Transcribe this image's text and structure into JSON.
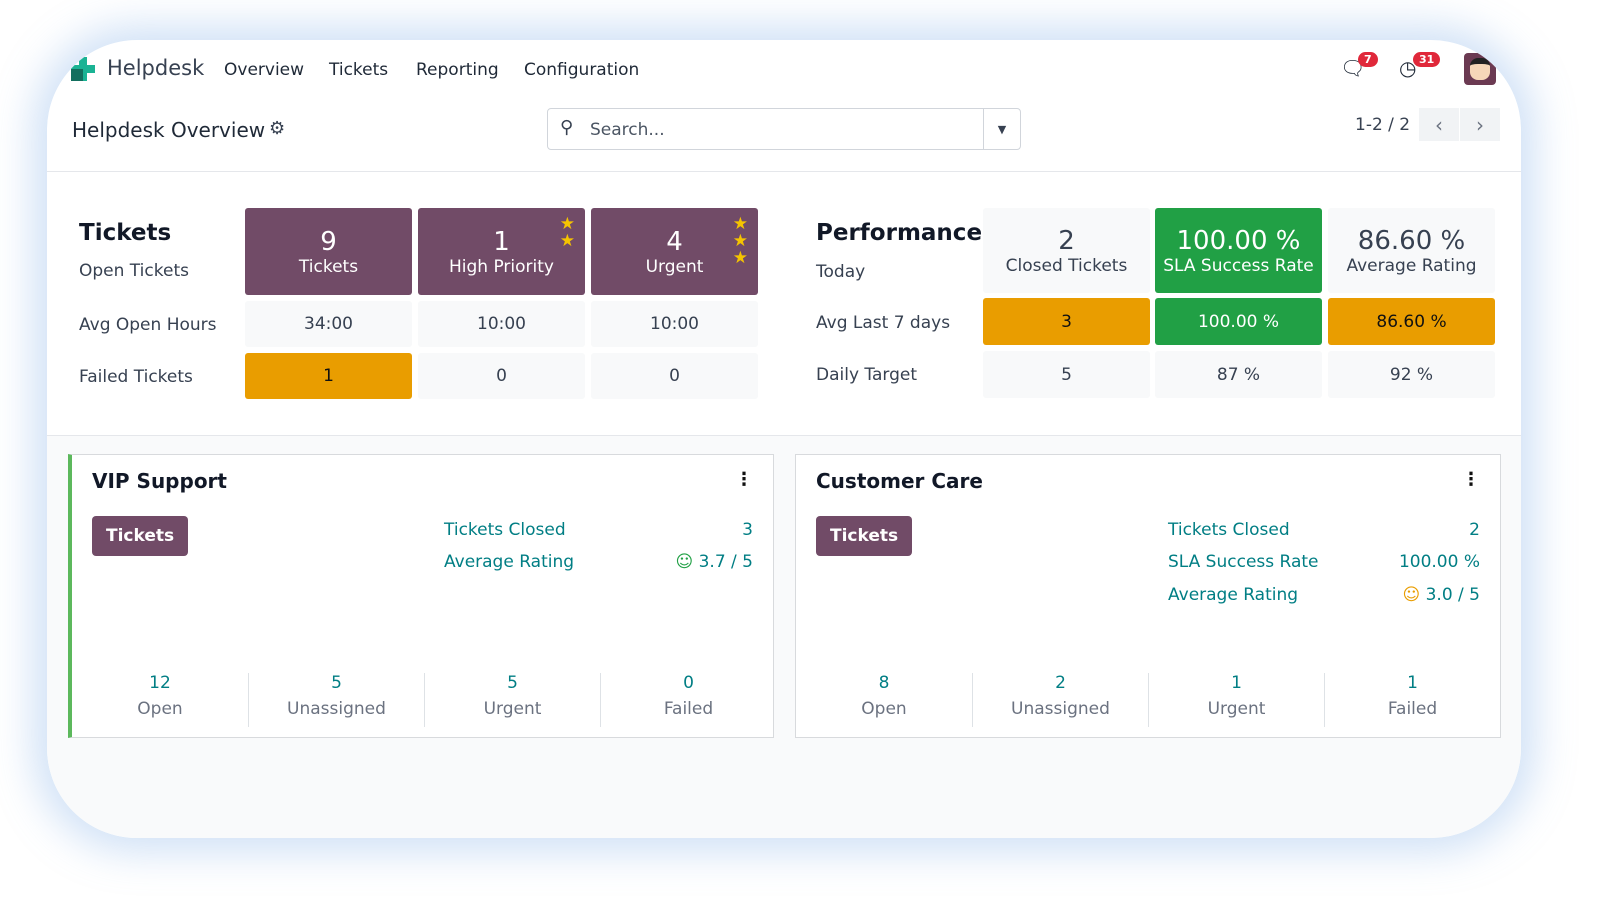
{
  "app": {
    "name": "Helpdesk",
    "menu": [
      "Overview",
      "Tickets",
      "Reporting",
      "Configuration"
    ],
    "messages_badge": "7",
    "activities_badge": "31"
  },
  "control": {
    "title": "Helpdesk Overview",
    "search_placeholder": "Search...",
    "pager": "1-2 / 2"
  },
  "tickets": {
    "title": "Tickets",
    "row_labels": [
      "Open Tickets",
      "Avg Open Hours",
      "Failed Tickets"
    ],
    "columns": [
      {
        "count": "9",
        "label": "Tickets",
        "avg": "34:00",
        "failed": "1"
      },
      {
        "count": "1",
        "label": "High Priority",
        "avg": "10:00",
        "failed": "0"
      },
      {
        "count": "4",
        "label": "Urgent",
        "avg": "10:00",
        "failed": "0"
      }
    ]
  },
  "performance": {
    "title": "Performance",
    "row_labels": [
      "Today",
      "Avg Last 7 days",
      "Daily Target"
    ],
    "columns": [
      {
        "value": "2",
        "label": "Closed Tickets",
        "avg": "3",
        "target": "5"
      },
      {
        "value": "100.00 %",
        "label": "SLA Success Rate",
        "avg": "100.00 %",
        "target": "87 %"
      },
      {
        "value": "86.60 %",
        "label": "Average Rating",
        "avg": "86.60 %",
        "target": "92 %"
      }
    ]
  },
  "teams": [
    {
      "name": "VIP Support",
      "button": "Tickets",
      "stats": [
        {
          "label": "Tickets Closed",
          "value": "3"
        },
        {
          "label": "Average Rating",
          "value": "3.7 / 5"
        }
      ],
      "bottom": [
        {
          "value": "12",
          "label": "Open"
        },
        {
          "value": "5",
          "label": "Unassigned"
        },
        {
          "value": "5",
          "label": "Urgent"
        },
        {
          "value": "0",
          "label": "Failed"
        }
      ]
    },
    {
      "name": "Customer Care",
      "button": "Tickets",
      "stats": [
        {
          "label": "Tickets Closed",
          "value": "2"
        },
        {
          "label": "SLA Success Rate",
          "value": "100.00 %"
        },
        {
          "label": "Average Rating",
          "value": "3.0 / 5"
        }
      ],
      "bottom": [
        {
          "value": "8",
          "label": "Open"
        },
        {
          "value": "2",
          "label": "Unassigned"
        },
        {
          "value": "1",
          "label": "Urgent"
        },
        {
          "value": "1",
          "label": "Failed"
        }
      ]
    }
  ],
  "colors": {
    "primary": "#714b67",
    "orange": "#e99d00",
    "green": "#21a045",
    "teal": "#017e84"
  }
}
